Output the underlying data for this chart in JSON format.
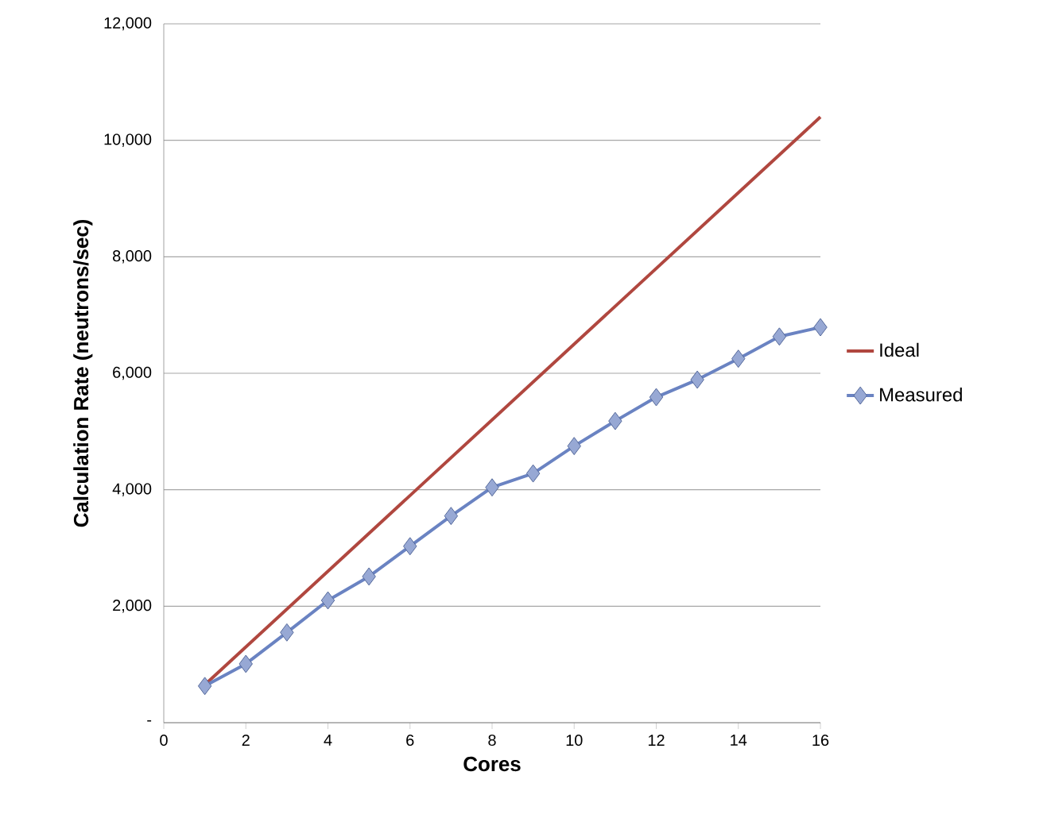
{
  "chart_data": {
    "type": "line",
    "xlabel": "Cores",
    "ylabel": "Calculation Rate (neutrons/sec)",
    "series": [
      {
        "name": "Ideal",
        "color": "#b0473f",
        "marker": "none",
        "x": [
          1,
          16
        ],
        "values": [
          650,
          10400
        ]
      },
      {
        "name": "Measured",
        "color": "#6a83c2",
        "marker": "diamond",
        "x": [
          1,
          2,
          3,
          4,
          5,
          6,
          7,
          8,
          9,
          10,
          11,
          12,
          13,
          14,
          15,
          16
        ],
        "values": [
          630,
          1010,
          1550,
          2100,
          2510,
          3030,
          3550,
          4040,
          4280,
          4750,
          5180,
          5590,
          5890,
          6250,
          6630,
          6790
        ]
      }
    ],
    "xlim": [
      0,
      16
    ],
    "xticks": [
      0,
      2,
      4,
      6,
      8,
      10,
      12,
      14,
      16
    ],
    "ylim": [
      0,
      12000
    ],
    "yticks": [
      {
        "value": 0,
        "label": "-"
      },
      {
        "value": 2000,
        "label": "2,000"
      },
      {
        "value": 4000,
        "label": "4,000"
      },
      {
        "value": 6000,
        "label": "6,000"
      },
      {
        "value": 8000,
        "label": "8,000"
      },
      {
        "value": 10000,
        "label": "10,000"
      },
      {
        "value": 12000,
        "label": "12,000"
      }
    ],
    "grid": "y",
    "legend": "right"
  }
}
